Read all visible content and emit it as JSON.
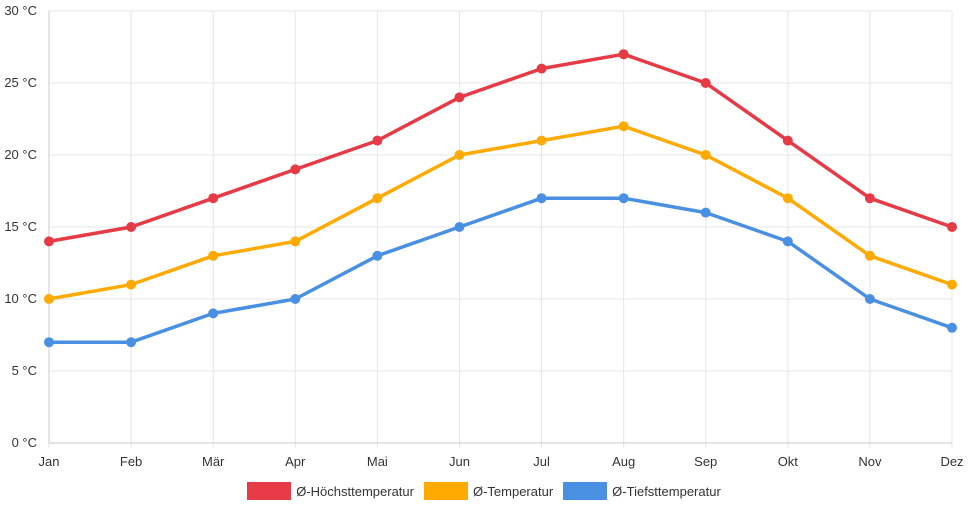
{
  "chart_data": {
    "type": "line",
    "categories": [
      "Jan",
      "Feb",
      "Mär",
      "Apr",
      "Mai",
      "Jun",
      "Jul",
      "Aug",
      "Sep",
      "Okt",
      "Nov",
      "Dez"
    ],
    "series": [
      {
        "name": "Ø-Höchsttemperatur",
        "color": "#e63a46",
        "values": [
          14,
          15,
          17,
          19,
          21,
          24,
          26,
          27,
          25,
          21,
          17,
          15
        ]
      },
      {
        "name": "Ø-Temperatur",
        "color": "#ffaa00",
        "values": [
          10,
          11,
          13,
          14,
          17,
          20,
          21,
          22,
          20,
          17,
          13,
          11
        ]
      },
      {
        "name": "Ø-Tiefsttemperatur",
        "color": "#4a90e2",
        "values": [
          7,
          7,
          9,
          10,
          13,
          15,
          17,
          17,
          16,
          14,
          10,
          8
        ]
      }
    ],
    "y_ticks": [
      "0 °C",
      "5 °C",
      "10 °C",
      "15 °C",
      "20 °C",
      "25 °C",
      "30 °C"
    ],
    "y_tick_values": [
      0,
      5,
      10,
      15,
      20,
      25,
      30
    ],
    "ylim": [
      0,
      30
    ],
    "grid": true,
    "legend_position": "bottom"
  }
}
